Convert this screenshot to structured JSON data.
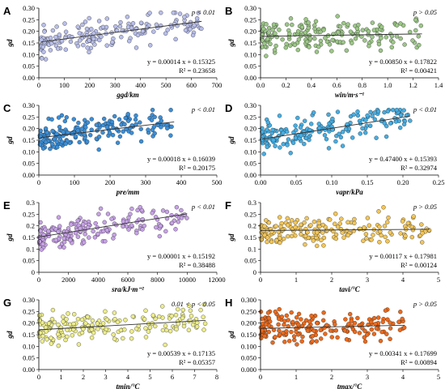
{
  "chart_data": [
    {
      "panel": "A",
      "type": "scatter",
      "xlabel": "ggd/km",
      "ylabel": "gd",
      "xlim": [
        0,
        700
      ],
      "ylim": [
        0,
        0.3
      ],
      "xticks": [
        "0",
        "100",
        "200",
        "300",
        "400",
        "500",
        "600",
        "700"
      ],
      "yticks": [
        "0.00",
        "0.05",
        "0.10",
        "0.15",
        "0.20",
        "0.25",
        "0.30"
      ],
      "p_text": "p < 0.01",
      "equation": "y = 0.00014 x + 0.15325",
      "r2": "R² = 0.23658",
      "slope": 0.00014,
      "intercept": 0.15325,
      "x_spread": [
        10,
        640
      ],
      "fit_x": [
        10,
        640
      ],
      "color": "#b9bfe9",
      "n_points": 190
    },
    {
      "panel": "B",
      "type": "scatter",
      "xlabel": "win/m·s⁻¹",
      "ylabel": "gd",
      "xlim": [
        0,
        1.4
      ],
      "ylim": [
        0,
        0.3
      ],
      "xticks": [
        "0.0",
        "0.2",
        "0.4",
        "0.6",
        "0.8",
        "1.0",
        "1.2",
        "1.4"
      ],
      "yticks": [
        "0.00",
        "0.05",
        "0.10",
        "0.15",
        "0.20",
        "0.25",
        "0.30"
      ],
      "p_text": "p > 0.05",
      "equation": "y = 0.00850 x + 0.17822",
      "r2": "R² = 0.00421",
      "slope": 0.0085,
      "intercept": 0.17822,
      "x_spread": [
        0.01,
        1.27
      ],
      "fit_x": [
        0.01,
        1.27
      ],
      "color": "#9cc787",
      "n_points": 190
    },
    {
      "panel": "C",
      "type": "scatter",
      "xlabel": "pre/mm",
      "ylabel": "gd",
      "xlim": [
        0,
        500
      ],
      "ylim": [
        0,
        0.3
      ],
      "xticks": [
        "0",
        "100",
        "200",
        "300",
        "400",
        "500"
      ],
      "yticks": [
        "0.00",
        "0.05",
        "0.10",
        "0.15",
        "0.20",
        "0.25",
        "0.30"
      ],
      "p_text": "p < 0.01",
      "equation": "y = 0.00018 x + 0.16039",
      "r2": "R² = 0.20175",
      "slope": 0.00018,
      "intercept": 0.16039,
      "x_spread": [
        3,
        380
      ],
      "fit_x": [
        3,
        380
      ],
      "color": "#3b8fd8",
      "n_points": 190
    },
    {
      "panel": "D",
      "type": "scatter",
      "xlabel": "vapr/kPa",
      "ylabel": "gd",
      "xlim": [
        0,
        0.25
      ],
      "ylim": [
        0,
        0.3
      ],
      "xticks": [
        "0.00",
        "0.05",
        "0.10",
        "0.15",
        "0.20",
        "0.25"
      ],
      "yticks": [
        "0.00",
        "0.05",
        "0.10",
        "0.15",
        "0.20",
        "0.25",
        "0.30"
      ],
      "p_text": "p < 0.01",
      "equation": "y = 0.47400 x + 0.15393",
      "r2": "R² = 0.32974",
      "slope": 0.474,
      "intercept": 0.15393,
      "x_spread": [
        0.002,
        0.21
      ],
      "fit_x": [
        0.002,
        0.21
      ],
      "color": "#46aee3",
      "n_points": 190
    },
    {
      "panel": "E",
      "type": "scatter",
      "xlabel": "sra/kJ·m⁻²",
      "ylabel": "gd",
      "xlim": [
        0,
        12000
      ],
      "ylim": [
        0,
        0.3
      ],
      "xticks": [
        "0",
        "2000",
        "4000",
        "6000",
        "8000",
        "10000",
        "12000"
      ],
      "yticks": [
        "0",
        "0.05",
        "0.1",
        "0.15",
        "0.2",
        "0.25",
        "0.3"
      ],
      "p_text": "p < 0.01",
      "equation": "y = 0.00001 x + 0.15192",
      "r2": "R² = 0.38488",
      "slope": 1e-05,
      "intercept": 0.15192,
      "x_spread": [
        30,
        10000
      ],
      "fit_x": [
        30,
        10000
      ],
      "color": "#c7a2e6",
      "n_points": 190
    },
    {
      "panel": "F",
      "type": "scatter",
      "xlabel": "tavi/°C",
      "ylabel": "gd",
      "xlim": [
        0,
        5
      ],
      "ylim": [
        0,
        0.3
      ],
      "xticks": [
        "0",
        "1",
        "2",
        "3",
        "4",
        "5"
      ],
      "yticks": [
        "0",
        "0.05",
        "0.1",
        "0.15",
        "0.2",
        "0.25",
        "0.3"
      ],
      "p_text": "p > 0.05",
      "equation": "y = 0.00117 x + 0.17981",
      "r2": "R² = 0.00124",
      "slope": 0.00117,
      "intercept": 0.17981,
      "x_spread": [
        0.01,
        4.75
      ],
      "fit_x": [
        0.01,
        4.75
      ],
      "color": "#f2c65a",
      "n_points": 190
    },
    {
      "panel": "G",
      "type": "scatter",
      "xlabel": "tmin/°C",
      "ylabel": "gd",
      "xlim": [
        0,
        8
      ],
      "ylim": [
        0,
        0.3
      ],
      "xticks": [
        "0",
        "1",
        "2",
        "3",
        "4",
        "5",
        "6",
        "7",
        "8"
      ],
      "yticks": [
        "0.00",
        "0.05",
        "0.10",
        "0.15",
        "0.20",
        "0.25",
        "0.30"
      ],
      "p_text": "0.01 < p < 0.05",
      "equation": "y = 0.00539 x + 0.17135",
      "r2": "R² = 0.05357",
      "slope": 0.00539,
      "intercept": 0.17135,
      "x_spread": [
        0.01,
        7.5
      ],
      "fit_x": [
        0.01,
        7.5
      ],
      "color": "#eded8c",
      "n_points": 190
    },
    {
      "panel": "H",
      "type": "scatter",
      "xlabel": "tmax/°C",
      "ylabel": "gd",
      "xlim": [
        0,
        5
      ],
      "ylim": [
        0,
        0.3
      ],
      "xticks": [
        "0",
        "1",
        "2",
        "3",
        "4",
        "5"
      ],
      "yticks": [
        "0.000",
        "0.050",
        "0.100",
        "0.150",
        "0.200",
        "0.250",
        "0.300"
      ],
      "p_text": "p > 0.05",
      "equation": "y = 0.00341 x + 0.17699",
      "r2": "R² = 0.00894",
      "slope": 0.00341,
      "intercept": 0.17699,
      "x_spread": [
        0.01,
        4.05
      ],
      "fit_x": [
        0.01,
        4.05
      ],
      "color": "#ec6a1c",
      "n_points": 190
    }
  ]
}
